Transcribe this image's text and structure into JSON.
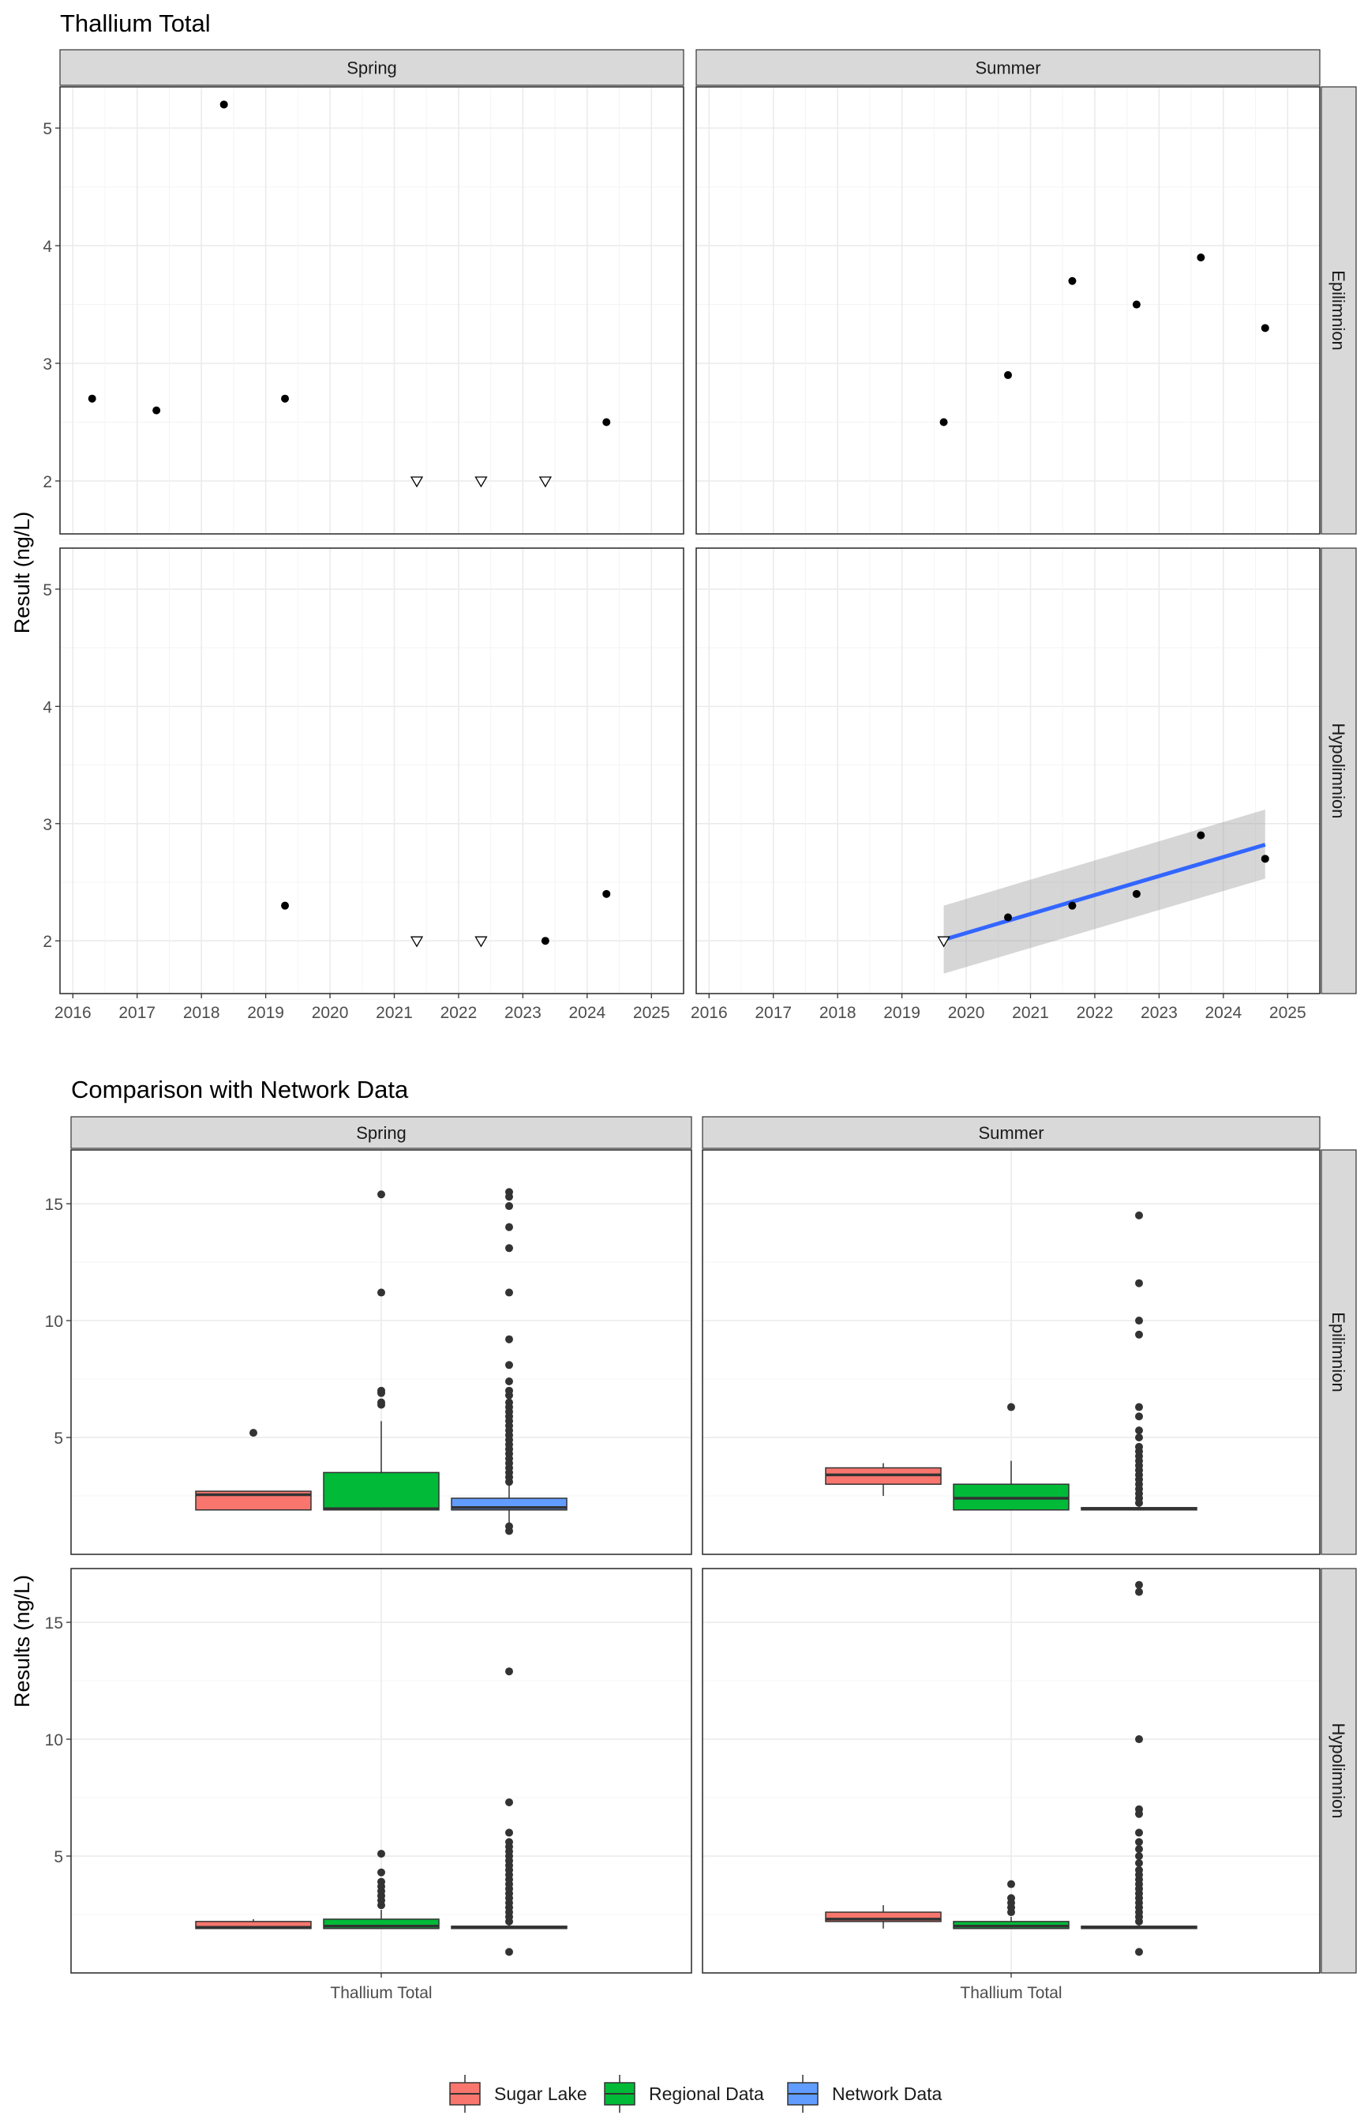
{
  "chart_data": [
    {
      "type": "scatter",
      "title": "Thallium Total",
      "ylabel": "Result (ng/L)",
      "xlabel": "",
      "facet_cols": [
        "Spring",
        "Summer"
      ],
      "facet_rows": [
        "Epilimnion",
        "Hypolimnion"
      ],
      "x_range": [
        2015.8,
        2025.5
      ],
      "ylim": [
        1.55,
        5.35
      ],
      "x_ticks": [
        2016,
        2017,
        2018,
        2019,
        2020,
        2021,
        2022,
        2023,
        2024,
        2025
      ],
      "y_ticks": [
        2,
        3,
        4,
        5
      ],
      "grid": true,
      "panels": [
        {
          "row": "Epilimnion",
          "col": "Spring",
          "points": [
            [
              2016.3,
              2.7
            ],
            [
              2017.3,
              2.6
            ],
            [
              2018.35,
              5.2
            ],
            [
              2019.3,
              2.7
            ],
            [
              2024.3,
              2.5
            ]
          ],
          "nondetects": [
            [
              2021.35,
              2.0
            ],
            [
              2022.35,
              2.0
            ],
            [
              2023.35,
              2.0
            ]
          ]
        },
        {
          "row": "Epilimnion",
          "col": "Summer",
          "points": [
            [
              2019.65,
              2.5
            ],
            [
              2020.65,
              2.9
            ],
            [
              2021.65,
              3.7
            ],
            [
              2022.65,
              3.5
            ],
            [
              2023.65,
              3.9
            ],
            [
              2024.65,
              3.3
            ]
          ],
          "nondetects": []
        },
        {
          "row": "Hypolimnion",
          "col": "Spring",
          "points": [
            [
              2019.3,
              2.3
            ],
            [
              2023.35,
              2.0
            ],
            [
              2024.3,
              2.4
            ]
          ],
          "nondetects": [
            [
              2021.35,
              2.0
            ],
            [
              2022.35,
              2.0
            ]
          ]
        },
        {
          "row": "Hypolimnion",
          "col": "Summer",
          "points": [
            [
              2020.65,
              2.2
            ],
            [
              2021.65,
              2.3
            ],
            [
              2022.65,
              2.4
            ],
            [
              2023.65,
              2.9
            ],
            [
              2024.65,
              2.7
            ]
          ],
          "nondetects": [
            [
              2019.65,
              2.0
            ]
          ],
          "trend": {
            "x": [
              2019.65,
              2024.65
            ],
            "y": [
              2.01,
              2.82
            ],
            "ci_lower": [
              1.72,
              2.53
            ],
            "ci_upper": [
              2.3,
              3.12
            ],
            "color": "#3366FF"
          }
        }
      ]
    },
    {
      "type": "box",
      "title": "Comparison with Network Data",
      "ylabel": "Results (ng/L)",
      "facet_cols": [
        "Spring",
        "Summer"
      ],
      "facet_rows": [
        "Epilimnion",
        "Hypolimnion"
      ],
      "categories": [
        "Thallium Total"
      ],
      "ylim": [
        0.0,
        17.3
      ],
      "y_ticks": [
        5,
        10,
        15
      ],
      "grid": true,
      "legend": {
        "position": "bottom",
        "entries": [
          {
            "name": "Sugar Lake",
            "color": "#F8766D"
          },
          {
            "name": "Regional Data",
            "color": "#00BA38"
          },
          {
            "name": "Network Data",
            "color": "#619CFF"
          }
        ]
      },
      "panels": [
        {
          "row": "Epilimnion",
          "col": "Spring",
          "boxes": [
            {
              "series": "Sugar Lake",
              "q1": 1.9,
              "median": 2.55,
              "q3": 2.7,
              "whisker_low": 1.9,
              "whisker_high": 2.7,
              "outliers": [
                5.2
              ]
            },
            {
              "series": "Regional Data",
              "q1": 1.9,
              "median": 1.95,
              "q3": 3.5,
              "whisker_low": 1.9,
              "whisker_high": 5.7,
              "outliers": [
                6.4,
                6.5,
                6.9,
                7.0,
                11.2,
                15.4
              ]
            },
            {
              "series": "Network Data",
              "q1": 1.9,
              "median": 2.0,
              "q3": 2.4,
              "whisker_low": 1.2,
              "whisker_high": 3.0,
              "outliers": [
                1.0,
                1.2,
                3.1,
                3.3,
                3.5,
                3.7,
                3.9,
                4.1,
                4.3,
                4.5,
                4.7,
                4.9,
                5.1,
                5.3,
                5.5,
                5.7,
                5.9,
                6.1,
                6.3,
                6.5,
                6.8,
                7.0,
                7.4,
                8.1,
                9.2,
                11.2,
                13.1,
                14.0,
                14.9,
                15.3,
                15.5
              ]
            }
          ]
        },
        {
          "row": "Epilimnion",
          "col": "Summer",
          "boxes": [
            {
              "series": "Sugar Lake",
              "q1": 3.0,
              "median": 3.4,
              "q3": 3.7,
              "whisker_low": 2.5,
              "whisker_high": 3.9,
              "outliers": []
            },
            {
              "series": "Regional Data",
              "q1": 1.9,
              "median": 2.4,
              "q3": 3.0,
              "whisker_low": 1.9,
              "whisker_high": 4.0,
              "outliers": [
                6.3
              ]
            },
            {
              "series": "Network Data",
              "q1": 1.9,
              "median": 1.95,
              "q3": 2.0,
              "whisker_low": 1.9,
              "whisker_high": 2.1,
              "outliers": [
                2.2,
                2.4,
                2.6,
                2.8,
                3.0,
                3.2,
                3.4,
                3.6,
                3.8,
                4.0,
                4.2,
                4.4,
                4.6,
                5.0,
                5.3,
                5.9,
                6.3,
                9.4,
                10.0,
                11.6,
                14.5
              ]
            }
          ]
        },
        {
          "row": "Hypolimnion",
          "col": "Spring",
          "boxes": [
            {
              "series": "Sugar Lake",
              "q1": 1.9,
              "median": 1.95,
              "q3": 2.2,
              "whisker_low": 1.9,
              "whisker_high": 2.3,
              "outliers": []
            },
            {
              "series": "Regional Data",
              "q1": 1.9,
              "median": 2.0,
              "q3": 2.3,
              "whisker_low": 1.9,
              "whisker_high": 2.7,
              "outliers": [
                2.9,
                3.1,
                3.3,
                3.5,
                3.7,
                3.9,
                4.3,
                5.1
              ]
            },
            {
              "series": "Network Data",
              "q1": 1.9,
              "median": 1.95,
              "q3": 2.0,
              "whisker_low": 1.9,
              "whisker_high": 2.1,
              "outliers": [
                0.9,
                2.2,
                2.4,
                2.6,
                2.8,
                3.0,
                3.2,
                3.4,
                3.6,
                3.8,
                4.0,
                4.2,
                4.4,
                4.6,
                4.8,
                5.0,
                5.2,
                5.4,
                5.6,
                6.0,
                7.3,
                12.9
              ]
            }
          ]
        },
        {
          "row": "Hypolimnion",
          "col": "Summer",
          "boxes": [
            {
              "series": "Sugar Lake",
              "q1": 2.2,
              "median": 2.3,
              "q3": 2.6,
              "whisker_low": 1.9,
              "whisker_high": 2.9,
              "outliers": []
            },
            {
              "series": "Regional Data",
              "q1": 1.9,
              "median": 2.0,
              "q3": 2.2,
              "whisker_low": 1.9,
              "whisker_high": 2.4,
              "outliers": [
                2.6,
                2.8,
                3.0,
                3.2,
                3.8
              ]
            },
            {
              "series": "Network Data",
              "q1": 1.9,
              "median": 1.95,
              "q3": 2.0,
              "whisker_low": 1.9,
              "whisker_high": 2.1,
              "outliers": [
                0.9,
                2.2,
                2.4,
                2.6,
                2.8,
                3.0,
                3.2,
                3.4,
                3.6,
                3.8,
                4.0,
                4.2,
                4.4,
                4.7,
                5.0,
                5.3,
                5.6,
                6.0,
                6.8,
                7.0,
                10.0,
                16.3,
                16.6
              ]
            }
          ]
        }
      ]
    }
  ]
}
